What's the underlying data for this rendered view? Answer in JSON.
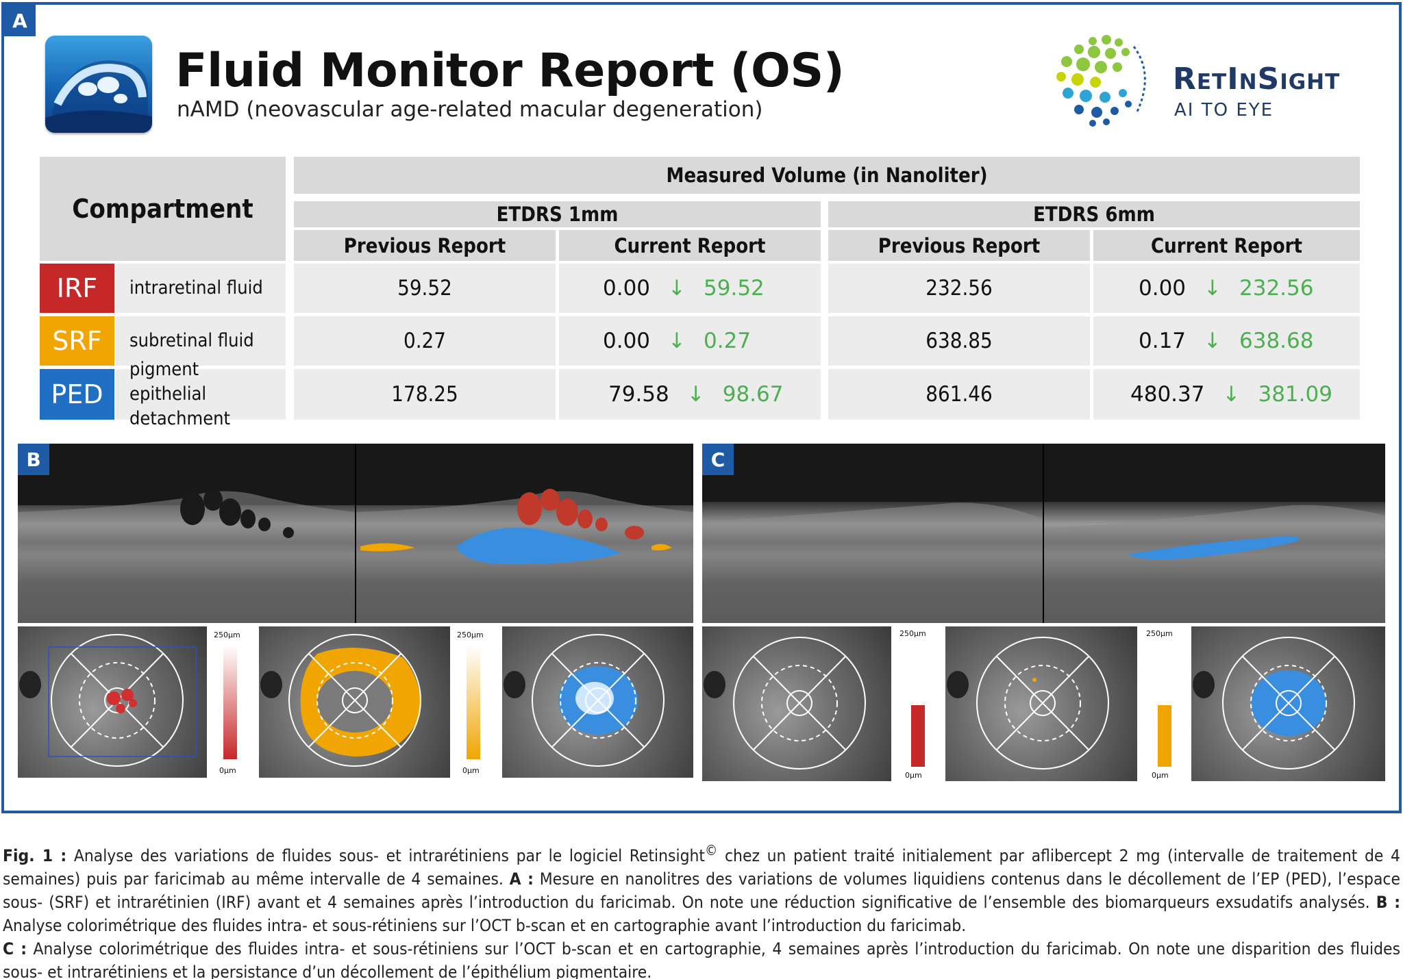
{
  "panels": {
    "a": "A",
    "b": "B",
    "c": "C"
  },
  "header": {
    "title": "Fluid Monitor Report (OS)",
    "subtitle": "nAMD (neovascular age-related macular degeneration)",
    "brand_name": "RetInSight",
    "brand_tagline": "AI TO EYE"
  },
  "table": {
    "compartment_label": "Compartment",
    "measured_label": "Measured Volume (in Nanoliter)",
    "groups": [
      "ETDRS 1mm",
      "ETDRS 6mm"
    ],
    "sub_headers": [
      "Previous Report",
      "Current Report",
      "Previous Report",
      "Current Report"
    ],
    "rows": [
      {
        "code": "IRF",
        "name": "intraretinal fluid",
        "color": "#c62828",
        "prev_1mm": "59.52",
        "cur_1mm": "0.00",
        "delta_1mm": "59.52",
        "prev_6mm": "232.56",
        "cur_6mm": "0.00",
        "delta_6mm": "232.56"
      },
      {
        "code": "SRF",
        "name": "subretinal fluid",
        "color": "#f0a500",
        "prev_1mm": "0.27",
        "cur_1mm": "0.00",
        "delta_1mm": "0.27",
        "prev_6mm": "638.85",
        "cur_6mm": "0.17",
        "delta_6mm": "638.68"
      },
      {
        "code": "PED",
        "name": "pigment epithelial detachment",
        "color": "#1f6fc5",
        "prev_1mm": "178.25",
        "cur_1mm": "79.58",
        "delta_1mm": "98.67",
        "prev_6mm": "861.46",
        "cur_6mm": "480.37",
        "delta_6mm": "381.09"
      }
    ],
    "arrow_glyph": "↓",
    "arrow_icon": "down-arrow-icon",
    "delta_color": "#4caf50"
  },
  "scales": {
    "top": "250µm",
    "bottom": "0µm"
  },
  "caption": {
    "fig_label": "Fig. 1 :",
    "p1": "Analyse des variations de fluides sous- et intrarétiniens par le logiciel Retinsight",
    "copyright": "©",
    "p2": " chez un patient traité initialement par aflibercept 2 mg (intervalle de traitement de 4 semaines) puis par faricimab au même intervalle de 4 semaines. ",
    "a_label": "A :",
    "a_text": " Mesure en nanolitres des variations de volumes liquidiens contenus dans le décollement de l’EP (PED), l’espace sous- (SRF) et intrarétinien (IRF) avant et 4 semaines après l’introduction du faricimab. On note une réduction significative de l’ensemble des biomarqueurs exsudatifs analysés. ",
    "b_label": "B :",
    "b_text": " Analyse colorimétrique des fluides intra- et sous-rétiniens sur l’OCT b-scan et en cartographie avant l’introduction du faricimab. ",
    "c_label": "C :",
    "c_text": " Analyse colorimétrique des fluides intra- et sous-rétiniens sur l’OCT b-scan et en cartographie, 4 semaines après l’introduction du faricimab. On note une disparition des fluides sous- et intrarétiniens et la persistance d’un décollement de l’épithélium pigmentaire."
  }
}
